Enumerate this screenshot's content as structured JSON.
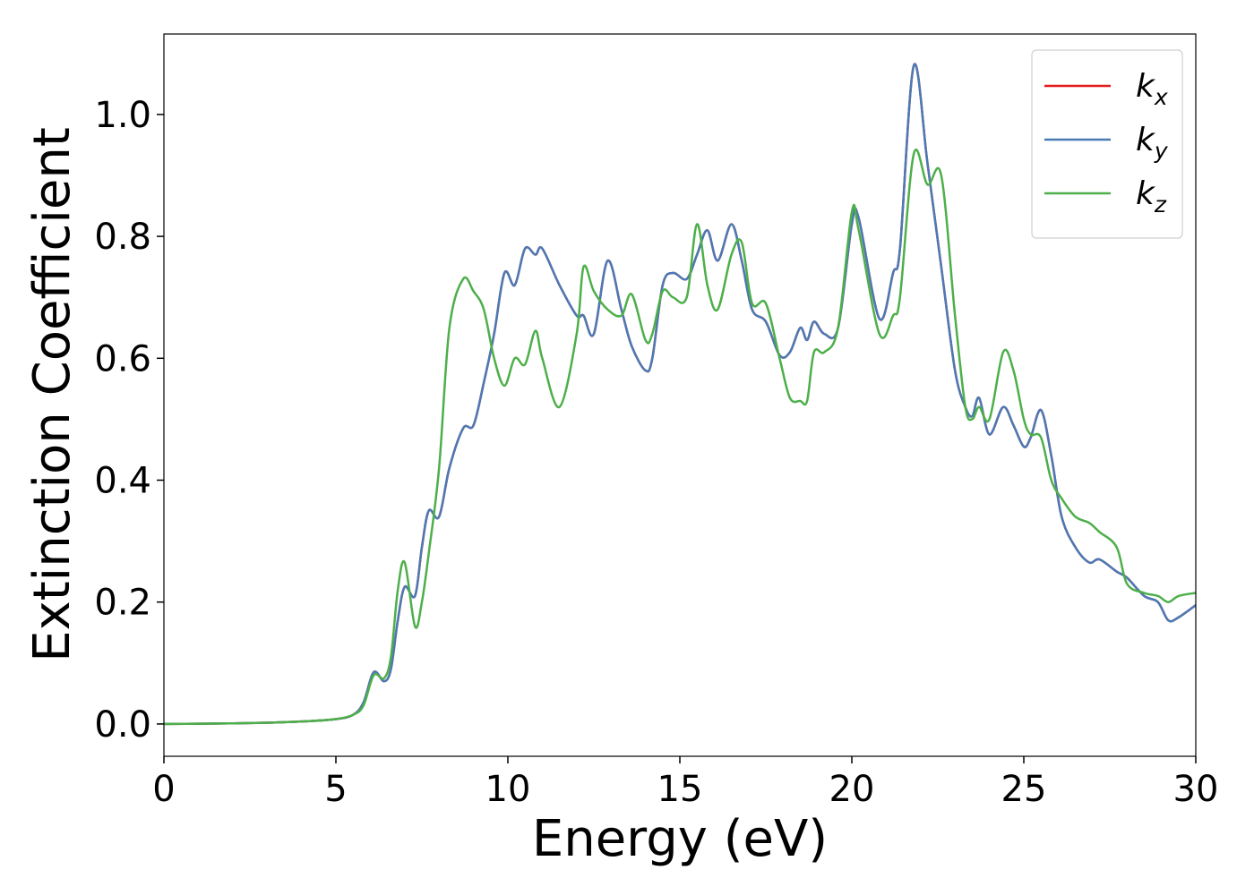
{
  "chart_data": {
    "type": "line",
    "xlabel": "Energy (eV)",
    "ylabel": "Extinction Coefficient",
    "x": [
      0,
      1,
      2,
      3,
      4,
      5,
      5.5,
      5.8,
      6.1,
      6.4,
      6.6,
      6.8,
      7.0,
      7.3,
      7.5,
      7.7,
      8.0,
      8.3,
      8.7,
      9.0,
      9.3,
      9.6,
      9.9,
      10.2,
      10.5,
      10.8,
      11.0,
      11.5,
      12.0,
      12.2,
      12.5,
      12.9,
      13.3,
      13.6,
      14.0,
      14.2,
      14.5,
      14.8,
      15.2,
      15.5,
      15.8,
      16.1,
      16.5,
      16.8,
      17.1,
      17.5,
      17.9,
      18.2,
      18.5,
      18.7,
      18.9,
      19.2,
      19.6,
      20.0,
      20.2,
      20.8,
      21.2,
      21.4,
      21.8,
      22.2,
      22.6,
      23.0,
      23.3,
      23.5,
      23.7,
      24.0,
      24.4,
      24.7,
      25.0,
      25.2,
      25.5,
      25.8,
      26.1,
      26.5,
      26.9,
      27.2,
      27.7,
      28.0,
      28.5,
      28.9,
      29.2,
      29.5,
      30
    ],
    "series": [
      {
        "name": "k_x",
        "color": "#e41a1c",
        "values": [
          0,
          0.0005,
          0.001,
          0.002,
          0.004,
          0.008,
          0.015,
          0.035,
          0.085,
          0.07,
          0.09,
          0.17,
          0.225,
          0.21,
          0.29,
          0.35,
          0.34,
          0.42,
          0.485,
          0.49,
          0.56,
          0.64,
          0.74,
          0.72,
          0.78,
          0.77,
          0.78,
          0.72,
          0.67,
          0.67,
          0.64,
          0.76,
          0.68,
          0.62,
          0.58,
          0.6,
          0.72,
          0.74,
          0.73,
          0.77,
          0.81,
          0.76,
          0.82,
          0.76,
          0.68,
          0.66,
          0.605,
          0.61,
          0.65,
          0.63,
          0.66,
          0.64,
          0.65,
          0.82,
          0.83,
          0.665,
          0.74,
          0.78,
          1.08,
          0.92,
          0.75,
          0.58,
          0.52,
          0.505,
          0.535,
          0.475,
          0.52,
          0.49,
          0.455,
          0.47,
          0.515,
          0.44,
          0.34,
          0.29,
          0.265,
          0.27,
          0.25,
          0.24,
          0.21,
          0.2,
          0.17,
          0.175,
          0.195
        ]
      },
      {
        "name": "k_y",
        "color": "#4a7ab5",
        "values": [
          0,
          0.0005,
          0.001,
          0.002,
          0.004,
          0.008,
          0.015,
          0.035,
          0.085,
          0.07,
          0.09,
          0.17,
          0.225,
          0.21,
          0.29,
          0.35,
          0.34,
          0.42,
          0.485,
          0.49,
          0.56,
          0.64,
          0.74,
          0.72,
          0.78,
          0.77,
          0.78,
          0.72,
          0.67,
          0.67,
          0.64,
          0.76,
          0.68,
          0.62,
          0.58,
          0.6,
          0.72,
          0.74,
          0.73,
          0.77,
          0.81,
          0.76,
          0.82,
          0.76,
          0.68,
          0.66,
          0.605,
          0.61,
          0.65,
          0.63,
          0.66,
          0.64,
          0.65,
          0.82,
          0.83,
          0.665,
          0.74,
          0.78,
          1.08,
          0.92,
          0.75,
          0.58,
          0.52,
          0.505,
          0.535,
          0.475,
          0.52,
          0.49,
          0.455,
          0.47,
          0.515,
          0.44,
          0.34,
          0.29,
          0.265,
          0.27,
          0.25,
          0.24,
          0.21,
          0.2,
          0.17,
          0.175,
          0.195
        ]
      },
      {
        "name": "k_z",
        "color": "#4daf4a",
        "values": [
          0,
          0.0005,
          0.001,
          0.002,
          0.004,
          0.008,
          0.015,
          0.03,
          0.08,
          0.075,
          0.11,
          0.22,
          0.265,
          0.16,
          0.2,
          0.28,
          0.42,
          0.65,
          0.73,
          0.71,
          0.68,
          0.6,
          0.555,
          0.6,
          0.59,
          0.645,
          0.6,
          0.52,
          0.64,
          0.75,
          0.71,
          0.68,
          0.67,
          0.705,
          0.63,
          0.64,
          0.71,
          0.7,
          0.7,
          0.82,
          0.72,
          0.68,
          0.77,
          0.79,
          0.69,
          0.69,
          0.6,
          0.535,
          0.53,
          0.53,
          0.61,
          0.61,
          0.65,
          0.84,
          0.81,
          0.64,
          0.67,
          0.7,
          0.935,
          0.885,
          0.9,
          0.67,
          0.52,
          0.5,
          0.52,
          0.5,
          0.61,
          0.58,
          0.5,
          0.475,
          0.47,
          0.4,
          0.37,
          0.34,
          0.33,
          0.315,
          0.29,
          0.23,
          0.215,
          0.21,
          0.2,
          0.21,
          0.215
        ]
      }
    ],
    "xlim": [
      0,
      30
    ],
    "xticks": [
      0,
      5,
      10,
      15,
      20,
      25,
      30
    ],
    "ylim": [
      -0.053,
      1.132
    ],
    "yticks": [
      {
        "value": 0,
        "label": "0.0"
      },
      0.2,
      0.4,
      0.6,
      0.8,
      {
        "value": 1,
        "label": "1.0"
      }
    ],
    "legend": "upper right"
  }
}
